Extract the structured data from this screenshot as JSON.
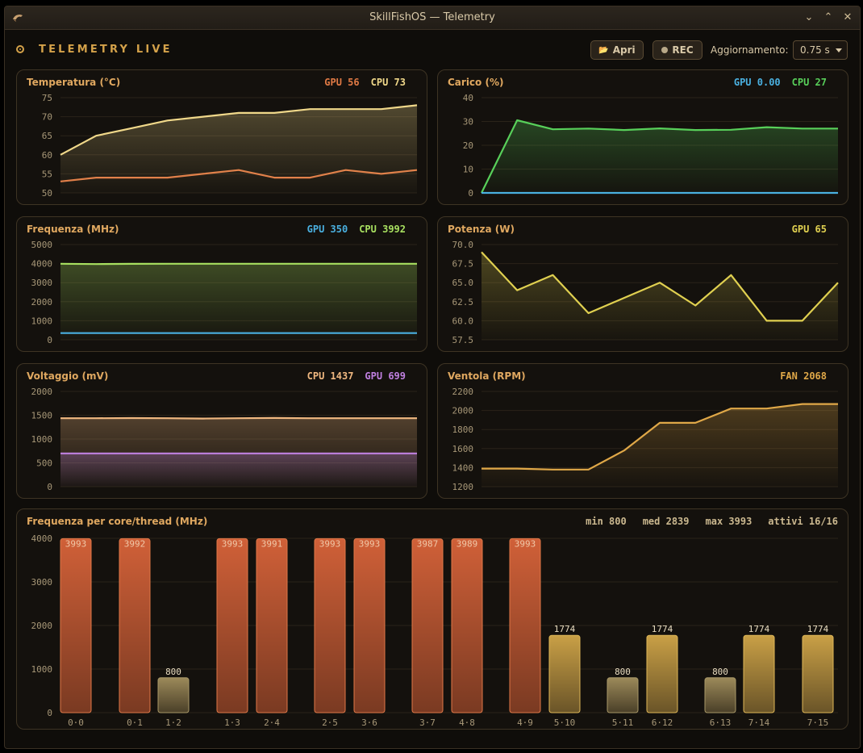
{
  "window": {
    "title": "SkillFishOS — Telemetry"
  },
  "header": {
    "live_label": "TELEMETRY LIVE",
    "open_label": "Apri",
    "rec_label": "REC",
    "refresh_label": "Aggiornamento:",
    "refresh_value": "0.75 s"
  },
  "colors": {
    "accent": "#d4a24a",
    "orange": "#e07a45",
    "yellow": "#f0d88a",
    "blue": "#4ab0e0",
    "green": "#58d05a",
    "lime": "#a8e060",
    "olive": "#e0d050",
    "purple": "#c080e0",
    "fan": "#e0a848"
  },
  "chart_data": [
    {
      "type": "line",
      "title": "Temperatura (°C)",
      "ylim": [
        50,
        75
      ],
      "yticks": [
        "75",
        "70",
        "65",
        "60",
        "55",
        "50"
      ],
      "readouts": [
        {
          "label": "GPU 56",
          "color": "#e07a45"
        },
        {
          "label": "CPU 73",
          "color": "#f0d88a"
        }
      ],
      "series": [
        {
          "name": "GPU",
          "color": "#e07a45",
          "fill": false,
          "values": [
            53,
            54,
            54,
            54,
            55,
            56,
            54,
            54,
            56,
            55,
            56
          ]
        },
        {
          "name": "CPU",
          "color": "#f0d88a",
          "fill": true,
          "values": [
            60,
            65,
            67,
            69,
            70,
            71,
            71,
            72,
            72,
            72,
            73
          ]
        }
      ]
    },
    {
      "type": "area",
      "title": "Carico (%)",
      "ylim": [
        0,
        40
      ],
      "yticks": [
        "40",
        "30",
        "20",
        "10",
        "0"
      ],
      "readouts": [
        {
          "label": "GPU 0.00",
          "color": "#4ab0e0"
        },
        {
          "label": "CPU 27",
          "color": "#58d05a"
        }
      ],
      "series": [
        {
          "name": "CPU",
          "color": "#58d05a",
          "fill": true,
          "values": [
            0,
            30.5,
            26.7,
            27,
            26.4,
            27.1,
            26.4,
            26.5,
            27.6,
            27,
            27
          ]
        },
        {
          "name": "GPU",
          "color": "#4ab0e0",
          "fill": false,
          "values": [
            0,
            0,
            0,
            0,
            0,
            0,
            0,
            0,
            0,
            0,
            0
          ]
        }
      ]
    },
    {
      "type": "area",
      "title": "Frequenza (MHz)",
      "ylim": [
        0,
        5000
      ],
      "yticks": [
        "5000",
        "4000",
        "3000",
        "2000",
        "1000",
        "0"
      ],
      "readouts": [
        {
          "label": "GPU 350",
          "color": "#4ab0e0"
        },
        {
          "label": "CPU 3992",
          "color": "#a8e060"
        }
      ],
      "series": [
        {
          "name": "CPU",
          "color": "#a8e060",
          "fill": true,
          "values": [
            3990,
            3975,
            3988,
            3992,
            3991,
            3990,
            3992,
            3992,
            3990,
            3992,
            3992
          ]
        },
        {
          "name": "GPU",
          "color": "#4ab0e0",
          "fill": false,
          "values": [
            350,
            350,
            350,
            350,
            350,
            350,
            350,
            350,
            350,
            350,
            350
          ]
        }
      ]
    },
    {
      "type": "area",
      "title": "Potenza (W)",
      "ylim": [
        57.5,
        70
      ],
      "yticks": [
        "70.0",
        "67.5",
        "65.0",
        "62.5",
        "60.0",
        "57.5"
      ],
      "readouts": [
        {
          "label": "GPU 65",
          "color": "#e0d050"
        }
      ],
      "series": [
        {
          "name": "GPU",
          "color": "#e0d050",
          "fill": true,
          "values": [
            69,
            64,
            66,
            61,
            63,
            65,
            62,
            66,
            60,
            60,
            65
          ]
        }
      ]
    },
    {
      "type": "area",
      "title": "Voltaggio (mV)",
      "ylim": [
        0,
        2000
      ],
      "yticks": [
        "2000",
        "1500",
        "1000",
        "500",
        "0"
      ],
      "readouts": [
        {
          "label": "CPU 1437",
          "color": "#f0b880"
        },
        {
          "label": "GPU 699",
          "color": "#c080e0"
        }
      ],
      "series": [
        {
          "name": "CPU",
          "color": "#f0b880",
          "fill": true,
          "values": [
            1437,
            1437,
            1440,
            1437,
            1430,
            1437,
            1442,
            1437,
            1437,
            1437,
            1437
          ]
        },
        {
          "name": "GPU",
          "color": "#c080e0",
          "fill": true,
          "values": [
            699,
            699,
            699,
            699,
            699,
            699,
            699,
            699,
            699,
            699,
            699
          ]
        }
      ]
    },
    {
      "type": "area",
      "title": "Ventola (RPM)",
      "ylim": [
        1200,
        2200
      ],
      "yticks": [
        "2200",
        "2000",
        "1800",
        "1600",
        "1400",
        "1200"
      ],
      "readouts": [
        {
          "label": "FAN 2068",
          "color": "#e0a848"
        }
      ],
      "series": [
        {
          "name": "FAN",
          "color": "#e0a848",
          "fill": true,
          "values": [
            1390,
            1390,
            1380,
            1380,
            1580,
            1870,
            1870,
            2020,
            2020,
            2068,
            2068
          ]
        }
      ]
    },
    {
      "type": "bar",
      "title": "Frequenza per core/thread (MHz)",
      "stats": [
        "min 800",
        "med 2839",
        "max 3993",
        "attivi 16/16"
      ],
      "ylim": [
        0,
        4000
      ],
      "yticks": [
        "4000",
        "3000",
        "2000",
        "1000",
        "0"
      ],
      "categories": [
        "0·0",
        "0·1",
        "1·2",
        "1·3",
        "2·4",
        "2·5",
        "3·6",
        "3·7",
        "4·8",
        "4·9",
        "5·10",
        "5·11",
        "6·12",
        "6·13",
        "7·14",
        "7·15"
      ],
      "values": [
        3993,
        3992,
        800,
        3993,
        3991,
        3993,
        3993,
        3987,
        3989,
        3993,
        1774,
        800,
        1774,
        800,
        1774,
        1774
      ],
      "value_labels": [
        "3993",
        "3992",
        "800",
        "3993",
        "3991",
        "3993",
        "3993",
        "3987",
        "3989",
        "3993",
        "1774",
        "800",
        "1774",
        "800",
        "1774",
        "1774"
      ]
    }
  ]
}
